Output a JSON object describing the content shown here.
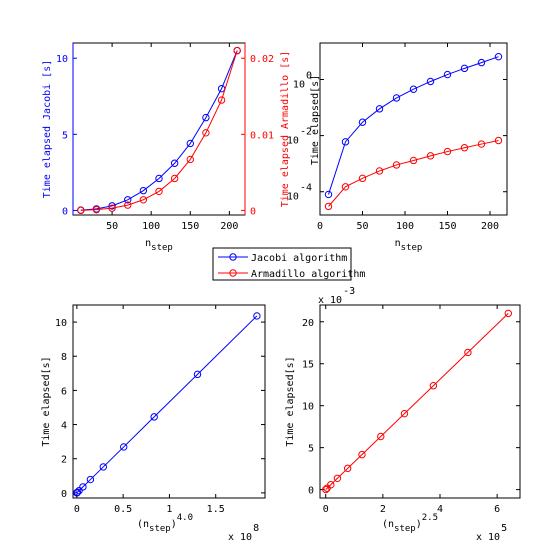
{
  "colors": {
    "series1": "#0000ff",
    "series2": "#ff0000",
    "axis": "#000000"
  },
  "legend": {
    "entries": [
      {
        "label": "Jacobi algorithm",
        "color": "#0000ff",
        "marker": "circle"
      },
      {
        "label": "Armadillo algorithm",
        "color": "#ff0000",
        "marker": "circle"
      }
    ]
  },
  "chart_data": [
    {
      "type": "line",
      "x": [
        10,
        30,
        50,
        70,
        90,
        110,
        130,
        150,
        170,
        190,
        210
      ],
      "xlabel_main": "n",
      "xlabel_sub": "step",
      "xlim": [
        0,
        220
      ],
      "xticks": [
        50,
        100,
        150,
        200
      ],
      "grid": false,
      "series": [
        {
          "name": "Jacobi algorithm",
          "axis": "left",
          "color": "#0000ff",
          "values": [
            0.02,
            0.1,
            0.3,
            0.7,
            1.3,
            2.1,
            3.1,
            4.4,
            6.1,
            8.0,
            10.5
          ]
        },
        {
          "name": "Armadillo algorithm",
          "axis": "right",
          "color": "#ff0000",
          "values": [
            1e-05,
            0.0001,
            0.0003,
            0.0007,
            0.0014,
            0.0025,
            0.0042,
            0.0067,
            0.0102,
            0.0145,
            0.021
          ]
        }
      ],
      "left_axis": {
        "label": "Time elapsed Jacobi [s]",
        "color": "#0000ff",
        "ylim": [
          -0.3,
          11
        ],
        "ticks": [
          0,
          5,
          10
        ],
        "tick_labels": [
          "0",
          "5",
          "10"
        ]
      },
      "right_axis": {
        "label": "Time elapsed Armadillo [s]",
        "color": "#ff0000",
        "ylim": [
          -0.0006,
          0.022
        ],
        "ticks": [
          0,
          0.01,
          0.02
        ],
        "tick_labels": [
          "0",
          "0.01",
          "0.02"
        ]
      }
    },
    {
      "type": "line",
      "yscale": "log",
      "x": [
        10,
        30,
        50,
        70,
        90,
        110,
        130,
        150,
        170,
        190,
        210
      ],
      "xlabel_main": "n",
      "xlabel_sub": "step",
      "ylabel": "Time elapsed[s]",
      "xlim": [
        0,
        220
      ],
      "xticks": [
        0,
        50,
        100,
        150,
        200
      ],
      "xtick_labels": [
        "0",
        "50",
        "100",
        "150",
        "200"
      ],
      "ylim": [
        1.48e-05,
        20
      ],
      "yticks": [
        0.0001,
        0.01,
        1
      ],
      "ytick_labels": [
        {
          "base": "10",
          "exp": "-4"
        },
        {
          "base": "10",
          "exp": "-2"
        },
        {
          "base": "10",
          "exp": "0"
        }
      ],
      "grid": false,
      "series": [
        {
          "name": "Jacobi algorithm",
          "color": "#0000ff",
          "values": [
            8e-05,
            0.006,
            0.03,
            0.09,
            0.22,
            0.45,
            0.85,
            1.5,
            2.5,
            4.0,
            6.5
          ]
        },
        {
          "name": "Armadillo algorithm",
          "color": "#ff0000",
          "values": [
            3e-05,
            0.00015,
            0.0003,
            0.00055,
            0.0009,
            0.0013,
            0.0019,
            0.0027,
            0.0037,
            0.005,
            0.0067
          ]
        }
      ]
    },
    {
      "type": "line",
      "x": [
        0.01,
        0.081,
        0.625,
        2.401,
        6.561,
        14.641,
        28.561,
        50.625,
        83.521,
        130.321,
        194.481
      ],
      "xlabel_main": "(n",
      "xlabel_sub": "step",
      "xlabel_close": ")",
      "xlabel_sup": "4.0",
      "x_exponent": {
        "base": "x 10",
        "exp": "8"
      },
      "ylabel": "Time elapsed[s]",
      "xlim": [
        -2,
        200
      ],
      "xticks": [
        0,
        50,
        100,
        150
      ],
      "xtick_labels": [
        "0",
        "0.5",
        "1",
        "1.5"
      ],
      "ylim": [
        -0.3,
        11
      ],
      "yticks": [
        0,
        2,
        4,
        6,
        8,
        10
      ],
      "ytick_labels": [
        "0",
        "2",
        "4",
        "6",
        "8",
        "10"
      ],
      "grid": false,
      "series": [
        {
          "name": "Jacobi algorithm",
          "color": "#0000ff",
          "values": [
            0.0,
            0.005,
            0.035,
            0.13,
            0.35,
            0.78,
            1.52,
            2.69,
            4.45,
            6.94,
            10.36
          ]
        }
      ]
    },
    {
      "type": "line",
      "x": [
        0.0316,
        0.4929,
        1.7678,
        4.0996,
        7.6843,
        12.691,
        19.267,
        27.557,
        37.681,
        49.772,
        63.906
      ],
      "xlabel_main": "(n",
      "xlabel_sub": "step",
      "xlabel_close": ")",
      "xlabel_sup": "2.5",
      "x_exponent": {
        "base": "x 10",
        "exp": "5"
      },
      "y_exponent": {
        "base": "x 10",
        "exp": "-3"
      },
      "ylabel": "Time elapsed[s]",
      "xlim": [
        -2,
        68
      ],
      "xticks": [
        0,
        20,
        40,
        60
      ],
      "xtick_labels": [
        "0",
        "2",
        "4",
        "6"
      ],
      "ylim": [
        -1,
        22
      ],
      "yticks": [
        0,
        5,
        10,
        15,
        20
      ],
      "ytick_labels": [
        "0",
        "5",
        "10",
        "15",
        "20"
      ],
      "grid": false,
      "series": [
        {
          "name": "Armadillo algorithm",
          "color": "#ff0000",
          "values": [
            0.01,
            0.162,
            0.58,
            1.35,
            2.53,
            4.17,
            6.33,
            9.05,
            12.38,
            16.35,
            21.0
          ]
        }
      ]
    }
  ]
}
